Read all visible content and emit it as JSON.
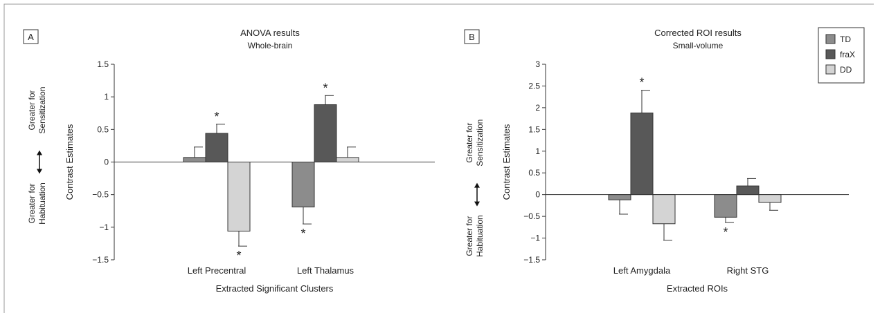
{
  "colors": {
    "TD": "#8c8c8c",
    "fraX": "#585858",
    "DD": "#d4d4d4"
  },
  "legend": [
    "TD",
    "fraX",
    "DD"
  ],
  "direction_labels": {
    "up_line1": "Greater for",
    "up_line2": "Sensitization",
    "down_line1": "Greater for",
    "down_line2": "Habituation"
  },
  "chart_data": [
    {
      "panel_label": "A",
      "type": "bar",
      "title": "ANOVA results",
      "subtitle": "Whole-brain",
      "xlabel": "Extracted Significant Clusters",
      "ylabel": "Contrast Estimates",
      "ylim": [
        -1.5,
        1.5
      ],
      "yticks": [
        -1.5,
        -1,
        -0.5,
        0,
        0.5,
        1,
        1.5
      ],
      "ytick_labels": [
        "−1.5",
        "−1",
        "−0.5",
        "0",
        "0.5",
        "1",
        "1.5"
      ],
      "categories": [
        "Left Precentral",
        "Left Thalamus"
      ],
      "series": [
        {
          "name": "TD",
          "values": [
            0.07,
            -0.69
          ],
          "errors": [
            0.16,
            0.26
          ],
          "significant": [
            false,
            true
          ]
        },
        {
          "name": "fraX",
          "values": [
            0.44,
            0.88
          ],
          "errors": [
            0.14,
            0.14
          ],
          "significant": [
            true,
            true
          ]
        },
        {
          "name": "DD",
          "values": [
            -1.06,
            0.07
          ],
          "errors": [
            0.23,
            0.16
          ],
          "significant": [
            true,
            false
          ]
        }
      ],
      "significance_symbol": "*"
    },
    {
      "panel_label": "B",
      "type": "bar",
      "title": "Corrected ROI results",
      "subtitle": "Small-volume",
      "xlabel": "Extracted ROIs",
      "ylabel": "Contrast Estimates",
      "ylim": [
        -1.5,
        3
      ],
      "yticks": [
        -1.5,
        -1,
        -0.5,
        0,
        0.5,
        1,
        1.5,
        2,
        2.5,
        3
      ],
      "ytick_labels": [
        "−1.5",
        "−1",
        "−0.5",
        "0",
        "0.5",
        "1",
        "1.5",
        "2",
        "2.5",
        "3"
      ],
      "categories": [
        "Left Amygdala",
        "Right STG"
      ],
      "series": [
        {
          "name": "TD",
          "values": [
            -0.12,
            -0.52
          ],
          "errors": [
            0.33,
            0.12
          ],
          "significant": [
            false,
            true
          ]
        },
        {
          "name": "fraX",
          "values": [
            1.88,
            0.2
          ],
          "errors": [
            0.52,
            0.17
          ],
          "significant": [
            true,
            false
          ]
        },
        {
          "name": "DD",
          "values": [
            -0.67,
            -0.18
          ],
          "errors": [
            0.38,
            0.18
          ],
          "significant": [
            false,
            false
          ]
        }
      ],
      "significance_symbol": "*"
    }
  ]
}
